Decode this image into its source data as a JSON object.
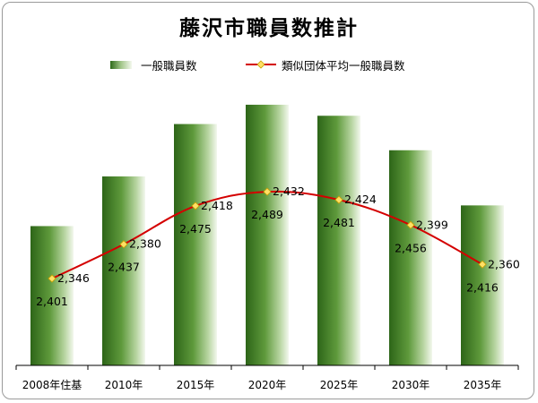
{
  "chart_data": {
    "type": "bar",
    "title": "藤沢市職員数推計",
    "categories": [
      "2008年住基",
      "2010年",
      "2015年",
      "2020年",
      "2025年",
      "2030年",
      "2035年"
    ],
    "series": [
      {
        "name": "一般職員数",
        "kind": "bar",
        "values": [
          2401,
          2437,
          2475,
          2489,
          2481,
          2456,
          2416
        ],
        "color": "#3f7a22"
      },
      {
        "name": "類似団体平均一般職員数",
        "kind": "line",
        "values": [
          2346,
          2380,
          2418,
          2432,
          2424,
          2399,
          2360
        ],
        "color": "#d40000",
        "marker_color": "#ffe066"
      }
    ],
    "data_labels": {
      "bars": [
        "2,401",
        "2,437",
        "2,475",
        "2,489",
        "2,481",
        "2,456",
        "2,416"
      ],
      "line": [
        "2,346",
        "2,380",
        "2,418",
        "2,432",
        "2,424",
        "2,399",
        "2,360"
      ]
    },
    "bar_axis_min": 2300,
    "bar_axis_max": 2500,
    "line_axis_min": 2260,
    "line_axis_max": 2480,
    "grid": false,
    "legend_position": "top"
  }
}
